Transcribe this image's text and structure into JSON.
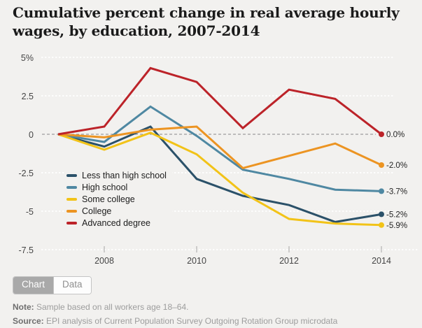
{
  "header": {
    "title_line1": "Cumulative percent change in real average hourly",
    "title_line2": "wages, by education, 2007-2014"
  },
  "chart_data": {
    "type": "line",
    "title": "Cumulative percent change in real average hourly wages, by education, 2007-2014",
    "x": [
      2007,
      2008,
      2009,
      2010,
      2011,
      2012,
      2013,
      2014
    ],
    "x_tick_labels": [
      "2008",
      "2010",
      "2012",
      "2014"
    ],
    "ylim": [
      -7.5,
      5
    ],
    "y_ticks": [
      {
        "value": 5,
        "label": "5%"
      },
      {
        "value": 2.5,
        "label": "2.5"
      },
      {
        "value": 0,
        "label": "0"
      },
      {
        "value": -2.5,
        "label": "-2.5"
      },
      {
        "value": -5,
        "label": "-5"
      },
      {
        "value": -7.5,
        "label": "-7.5"
      }
    ],
    "grid": "white dotted horizontal lines, dashed dark zero line",
    "legend_position": "inside lower-left",
    "series": [
      {
        "name": "Less than high school",
        "color": "#2b5169",
        "values": [
          0,
          -0.8,
          0.5,
          -2.9,
          -4.0,
          -4.6,
          -5.7,
          -5.2
        ],
        "end_label": "-5.2%"
      },
      {
        "name": "High school",
        "color": "#4f88a2",
        "values": [
          0,
          -0.5,
          1.8,
          -0.1,
          -2.3,
          -2.9,
          -3.6,
          -3.7
        ],
        "end_label": "-3.7%"
      },
      {
        "name": "Some college",
        "color": "#f2c318",
        "values": [
          0,
          -1.0,
          0.1,
          -1.3,
          -3.8,
          -5.5,
          -5.8,
          -5.9
        ],
        "end_label": "-5.9%"
      },
      {
        "name": "College",
        "color": "#ec9422",
        "values": [
          0,
          -0.2,
          0.3,
          0.5,
          -2.2,
          -1.4,
          -0.6,
          -2.0
        ],
        "end_label": "-2.0%"
      },
      {
        "name": "Advanced degree",
        "color": "#bc2329",
        "values": [
          0,
          0.5,
          4.3,
          3.4,
          0.4,
          2.9,
          2.3,
          0.0
        ],
        "end_label": "0.0%"
      }
    ]
  },
  "tabs": [
    {
      "label": "Chart",
      "active": true
    },
    {
      "label": "Data",
      "active": false
    }
  ],
  "footnotes": {
    "note_label": "Note:",
    "note_text": " Sample based on all workers age 18–64.",
    "source_label": "Source:",
    "source_text": " EPI analysis of Current Population Survey Outgoing Rotation Group microdata"
  },
  "colors": {
    "background": "#f2f1ef",
    "grid_line": "#ffffff",
    "zero_line": "#888888",
    "axis_text": "#454545",
    "end_label_text": "#242424",
    "tab_active_bg": "#a9a9a9"
  }
}
